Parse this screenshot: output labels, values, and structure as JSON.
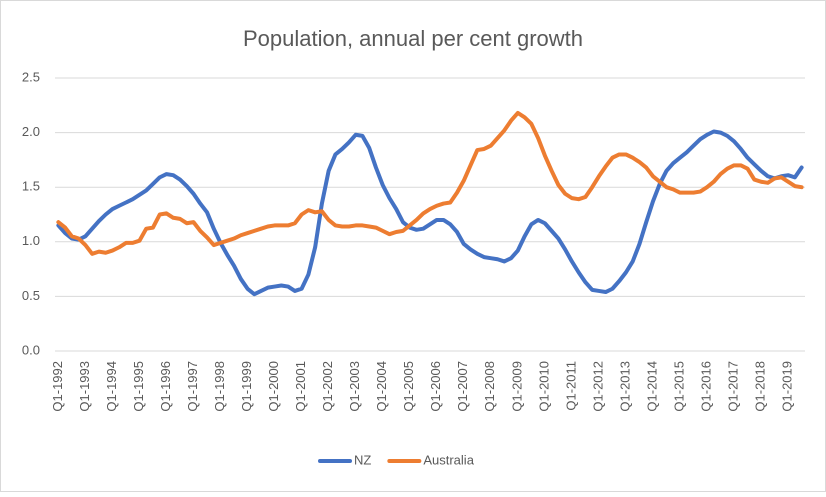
{
  "chart_data": {
    "type": "line",
    "title": "Population, annual per cent growth",
    "categories": [
      "Q1-1992",
      null,
      null,
      null,
      "Q1-1993",
      null,
      null,
      null,
      "Q1-1994",
      null,
      null,
      null,
      "Q1-1995",
      null,
      null,
      null,
      "Q1-1996",
      null,
      null,
      null,
      "Q1-1997",
      null,
      null,
      null,
      "Q1-1998",
      null,
      null,
      null,
      "Q1-1999",
      null,
      null,
      null,
      "Q1-2000",
      null,
      null,
      null,
      "Q1-2001",
      null,
      null,
      null,
      "Q1-2002",
      null,
      null,
      null,
      "Q1-2003",
      null,
      null,
      null,
      "Q1-2004",
      null,
      null,
      null,
      "Q1-2005",
      null,
      null,
      null,
      "Q1-2006",
      null,
      null,
      null,
      "Q1-2007",
      null,
      null,
      null,
      "Q1-2008",
      null,
      null,
      null,
      "Q1-2009",
      null,
      null,
      null,
      "Q1-2010",
      null,
      null,
      null,
      "Q1-2011",
      null,
      null,
      null,
      "Q1-2012",
      null,
      null,
      null,
      "Q1-2013",
      null,
      null,
      null,
      "Q1-2014",
      null,
      null,
      null,
      "Q1-2015",
      null,
      null,
      null,
      "Q1-2016",
      null,
      null,
      null,
      "Q1-2017",
      null,
      null,
      null,
      "Q1-2018",
      null,
      null,
      null,
      "Q1-2019",
      null,
      null
    ],
    "series": [
      {
        "name": "NZ",
        "color": "#4472c4",
        "values": [
          1.15,
          1.08,
          1.03,
          1.02,
          1.05,
          1.12,
          1.19,
          1.25,
          1.3,
          1.33,
          1.36,
          1.39,
          1.43,
          1.47,
          1.53,
          1.59,
          1.62,
          1.61,
          1.57,
          1.51,
          1.44,
          1.35,
          1.27,
          1.12,
          0.99,
          0.88,
          0.78,
          0.66,
          0.57,
          0.52,
          0.55,
          0.58,
          0.59,
          0.6,
          0.59,
          0.55,
          0.57,
          0.7,
          0.95,
          1.35,
          1.65,
          1.8,
          1.85,
          1.91,
          1.98,
          1.97,
          1.86,
          1.68,
          1.52,
          1.4,
          1.3,
          1.18,
          1.13,
          1.11,
          1.12,
          1.16,
          1.2,
          1.2,
          1.16,
          1.09,
          0.98,
          0.93,
          0.89,
          0.86,
          0.85,
          0.84,
          0.82,
          0.85,
          0.92,
          1.05,
          1.16,
          1.2,
          1.17,
          1.1,
          1.03,
          0.93,
          0.82,
          0.72,
          0.63,
          0.56,
          0.55,
          0.54,
          0.57,
          0.64,
          0.72,
          0.82,
          0.98,
          1.18,
          1.37,
          1.53,
          1.65,
          1.72,
          1.77,
          1.82,
          1.88,
          1.94,
          1.98,
          2.01,
          2.0,
          1.97,
          1.92,
          1.85,
          1.77,
          1.71,
          1.65,
          1.6,
          1.58,
          1.6,
          1.61,
          1.59,
          1.68
        ]
      },
      {
        "name": "Australia",
        "color": "#ed7d31",
        "values": [
          1.18,
          1.13,
          1.05,
          1.03,
          0.97,
          0.89,
          0.91,
          0.9,
          0.92,
          0.95,
          0.99,
          0.99,
          1.01,
          1.12,
          1.13,
          1.25,
          1.26,
          1.22,
          1.21,
          1.17,
          1.18,
          1.1,
          1.04,
          0.97,
          0.99,
          1.01,
          1.03,
          1.06,
          1.08,
          1.1,
          1.12,
          1.14,
          1.15,
          1.15,
          1.15,
          1.17,
          1.25,
          1.29,
          1.27,
          1.28,
          1.2,
          1.15,
          1.14,
          1.14,
          1.15,
          1.15,
          1.14,
          1.13,
          1.1,
          1.07,
          1.09,
          1.1,
          1.15,
          1.2,
          1.26,
          1.3,
          1.33,
          1.35,
          1.36,
          1.45,
          1.56,
          1.7,
          1.84,
          1.85,
          1.88,
          1.95,
          2.02,
          2.11,
          2.18,
          2.14,
          2.08,
          1.95,
          1.79,
          1.65,
          1.52,
          1.44,
          1.4,
          1.39,
          1.41,
          1.5,
          1.6,
          1.69,
          1.77,
          1.8,
          1.8,
          1.77,
          1.73,
          1.68,
          1.6,
          1.55,
          1.5,
          1.48,
          1.45,
          1.45,
          1.45,
          1.46,
          1.5,
          1.55,
          1.62,
          1.67,
          1.7,
          1.7,
          1.67,
          1.57,
          1.55,
          1.54,
          1.58,
          1.59,
          1.55,
          1.51,
          1.5
        ]
      }
    ],
    "ylim": [
      0,
      2.5
    ],
    "yticks": [
      {
        "value": 0,
        "label": "0.0"
      },
      0.5,
      {
        "value": 1,
        "label": "1.0"
      },
      1.5,
      {
        "value": 2,
        "label": "2.0"
      },
      2.5
    ],
    "grid": true,
    "legend": "bottom"
  }
}
